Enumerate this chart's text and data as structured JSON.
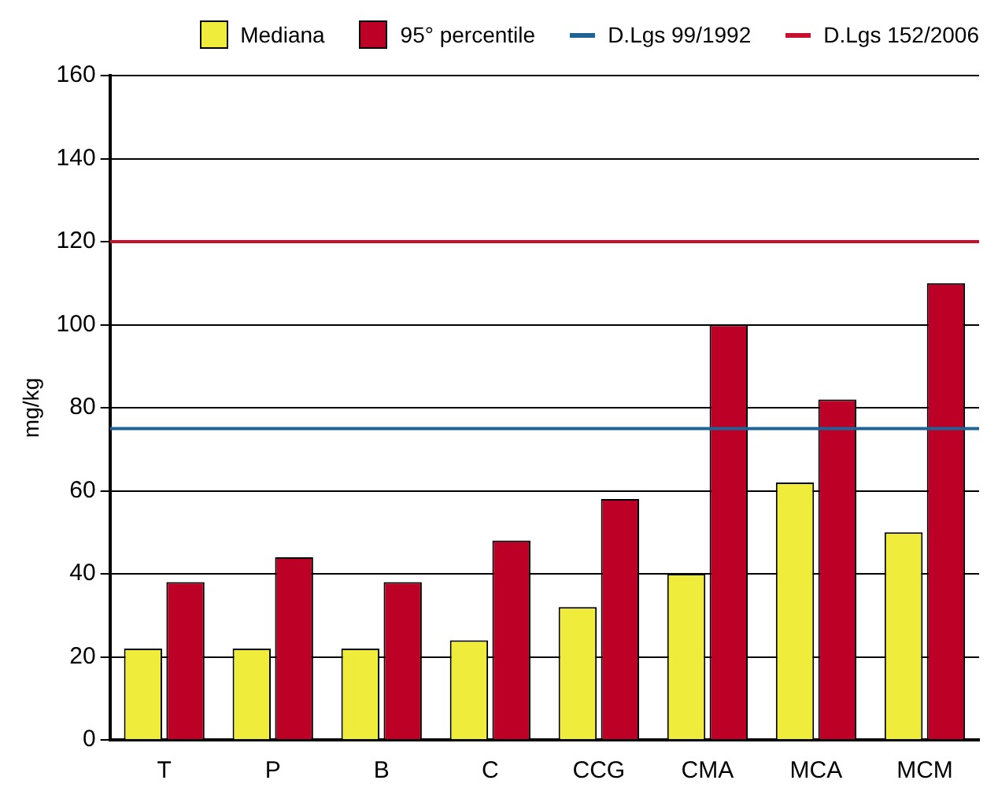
{
  "chart_data": {
    "type": "bar",
    "ylabel": "mg/kg",
    "categories": [
      "T",
      "P",
      "B",
      "C",
      "CCG",
      "CMA",
      "MCA",
      "MCM"
    ],
    "series": [
      {
        "name": "Mediana",
        "color": "#f0ec3c",
        "values": [
          22,
          22,
          22,
          24,
          32,
          40,
          62,
          50
        ]
      },
      {
        "name": "95° percentile",
        "color": "#bd0026",
        "values": [
          38,
          44,
          38,
          48,
          58,
          100,
          82,
          110
        ]
      }
    ],
    "ref_lines": [
      {
        "axis": "y",
        "value": 75,
        "label": "D.Lgs 99/1992",
        "color": "#1f6494"
      },
      {
        "axis": "y",
        "value": 120,
        "label": "D.Lgs 152/2006",
        "color": "#c8102e"
      }
    ],
    "ylim": [
      0,
      160
    ],
    "yticks": [
      0,
      20,
      40,
      60,
      80,
      100,
      120,
      140,
      160
    ],
    "grid": "y",
    "legend": "top"
  }
}
